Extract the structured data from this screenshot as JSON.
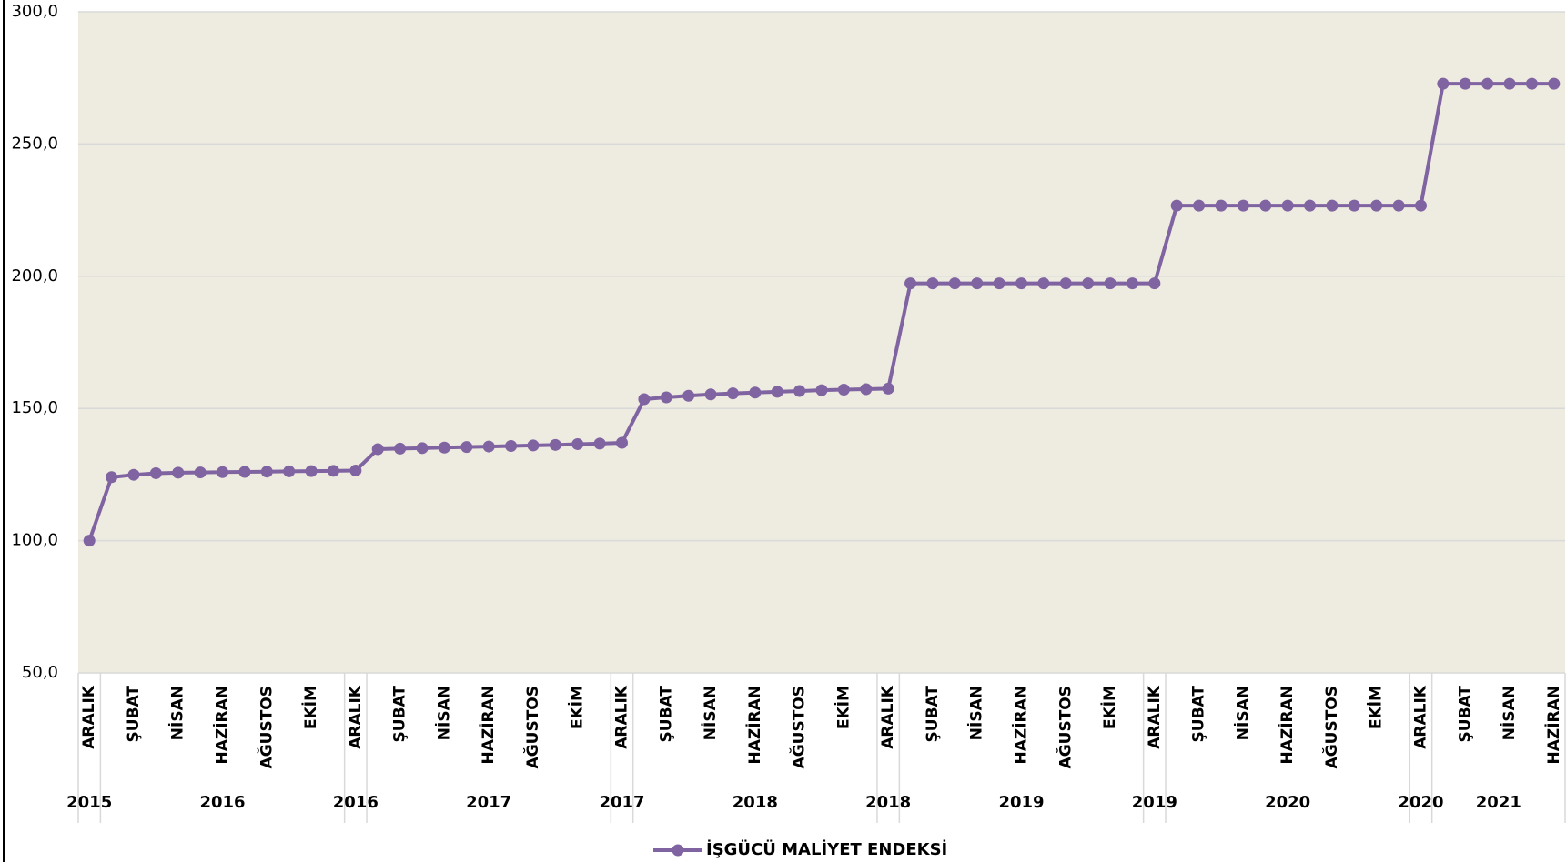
{
  "chart_data": {
    "type": "line",
    "categories": [
      "ARALIK",
      null,
      "ŞUBAT",
      null,
      "NİSAN",
      null,
      "HAZİRAN",
      null,
      "AĞUSTOS",
      null,
      "EKİM",
      null,
      "ARALIK",
      null,
      "ŞUBAT",
      null,
      "NİSAN",
      null,
      "HAZİRAN",
      null,
      "AĞUSTOS",
      null,
      "EKİM",
      null,
      "ARALIK",
      null,
      "ŞUBAT",
      null,
      "NİSAN",
      null,
      "HAZİRAN",
      null,
      "AĞUSTOS",
      null,
      "EKİM",
      null,
      "ARALIK",
      null,
      "ŞUBAT",
      null,
      "NİSAN",
      null,
      "HAZİRAN",
      null,
      "AĞUSTOS",
      null,
      "EKİM",
      null,
      "ARALIK",
      null,
      "ŞUBAT",
      null,
      "NİSAN",
      null,
      "HAZİRAN",
      null,
      "AĞUSTOS",
      null,
      "EKİM",
      null,
      "ARALIK",
      null,
      "ŞUBAT",
      null,
      "NİSAN",
      null,
      "HAZİRAN"
    ],
    "x_groups": [
      {
        "label": "2015",
        "count": 1
      },
      {
        "label": "2016",
        "count": 11
      },
      {
        "label": "2016",
        "count": 1
      },
      {
        "label": "2017",
        "count": 11
      },
      {
        "label": "2017",
        "count": 1
      },
      {
        "label": "2018",
        "count": 11
      },
      {
        "label": "2018",
        "count": 1
      },
      {
        "label": "2019",
        "count": 11
      },
      {
        "label": "2019",
        "count": 1
      },
      {
        "label": "2020",
        "count": 11
      },
      {
        "label": "2020",
        "count": 1
      },
      {
        "label": "2021",
        "count": 6
      }
    ],
    "series": [
      {
        "name": "İŞGÜCÜ MALİYET ENDEKSİ",
        "color": "#8064a2",
        "values": [
          100.0,
          124.0,
          124.9,
          125.5,
          125.7,
          125.8,
          125.9,
          126.0,
          126.1,
          126.2,
          126.3,
          126.4,
          126.5,
          134.6,
          134.8,
          135.0,
          135.2,
          135.4,
          135.6,
          135.8,
          136.0,
          136.2,
          136.5,
          136.7,
          137.0,
          153.5,
          154.2,
          154.8,
          155.3,
          155.7,
          156.0,
          156.3,
          156.6,
          156.9,
          157.1,
          157.3,
          157.5,
          197.3,
          197.3,
          197.3,
          197.3,
          197.3,
          197.3,
          197.3,
          197.3,
          197.3,
          197.3,
          197.3,
          197.3,
          226.7,
          226.7,
          226.7,
          226.7,
          226.7,
          226.7,
          226.7,
          226.7,
          226.7,
          226.7,
          226.7,
          226.7,
          272.8,
          272.8,
          272.8,
          272.8,
          272.8,
          272.8
        ]
      }
    ],
    "ylim": [
      50,
      300
    ],
    "yticks": [
      {
        "value": 50,
        "label": "50,0"
      },
      {
        "value": 100,
        "label": "100,0"
      },
      {
        "value": 150,
        "label": "150,0"
      },
      {
        "value": 200,
        "label": "200,0"
      },
      {
        "value": 250,
        "label": "250,0"
      },
      {
        "value": 300,
        "label": "300,0"
      }
    ],
    "grid": true,
    "legend": "bottom"
  }
}
